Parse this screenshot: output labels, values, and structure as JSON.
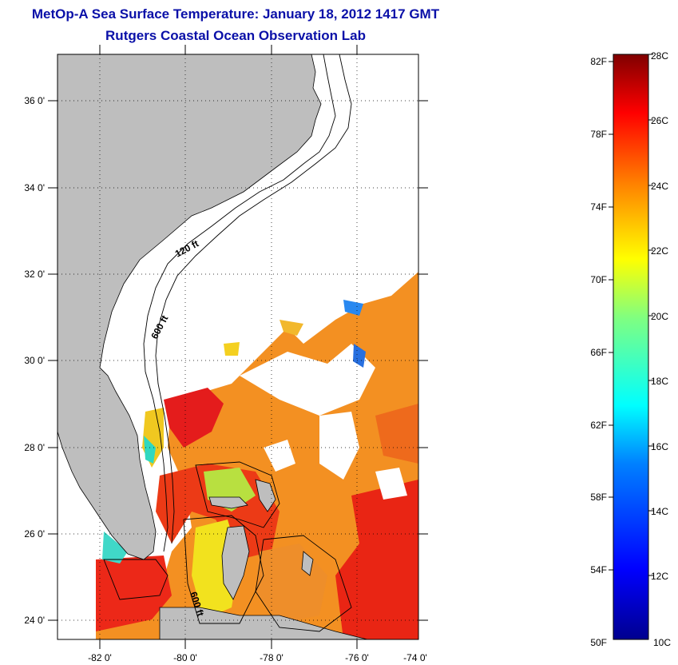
{
  "title": {
    "line1": "MetOp-A Sea Surface Temperature:  January 18, 2012 1417 GMT",
    "line2": "Rutgers Coastal Ocean Observation Lab"
  },
  "map": {
    "lat_labels": [
      "36 0'",
      "34 0'",
      "32 0'",
      "30 0'",
      "28 0'",
      "26 0'",
      "24 0'"
    ],
    "lon_labels": [
      "-82 0'",
      "-80 0'",
      "-78 0'",
      "-76 0'",
      "-74 0'"
    ],
    "contour_labels": [
      "120 ft",
      "600 ft",
      "600 ft"
    ],
    "land_color": "#bebebe",
    "missing_color": "#ffffff"
  },
  "colorbar": {
    "fahrenheit_labels": [
      "82F",
      "78F",
      "74F",
      "70F",
      "66F",
      "62F",
      "58F",
      "54F",
      "50F"
    ],
    "celsius_labels": [
      "28C",
      "26C",
      "24C",
      "22C",
      "20C",
      "18C",
      "16C",
      "14C",
      "12C",
      "10C"
    ],
    "colormap_stops": [
      "#00008f",
      "#0000ff",
      "#0080ff",
      "#00ffff",
      "#80ff80",
      "#ffff00",
      "#ff8000",
      "#ff0000",
      "#800000"
    ]
  }
}
